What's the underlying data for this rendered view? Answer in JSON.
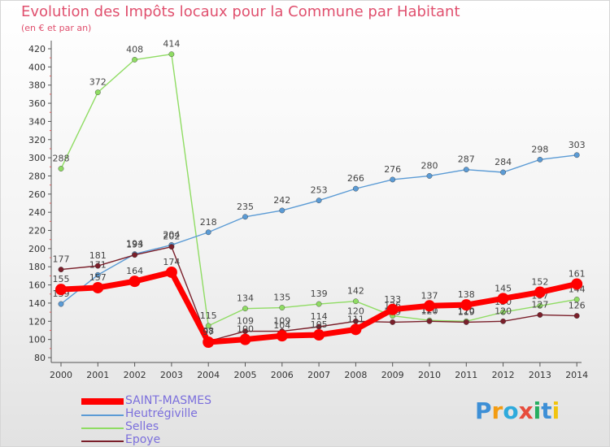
{
  "header": {
    "title": "Evolution des Impôts locaux pour la Commune par Habitant",
    "subtitle": "(en € et par an)"
  },
  "brand": {
    "text": "Proxiti",
    "colors": [
      "#3d8fd6",
      "#f39c12",
      "#2eaadc",
      "#e74c3c",
      "#27ae60",
      "#3d8fd6",
      "#f1c40f"
    ]
  },
  "chart_data": {
    "type": "line",
    "title": "Evolution des Impôts locaux pour la Commune par Habitant",
    "subtitle": "(en € et par an)",
    "x": [
      "2000",
      "2001",
      "2002",
      "2003",
      "2004",
      "2005",
      "2006",
      "2007",
      "2008",
      "2009",
      "2010",
      "2011",
      "2012",
      "2013",
      "2014"
    ],
    "ylim": [
      80,
      420
    ],
    "yticks": [
      80,
      100,
      120,
      140,
      160,
      180,
      200,
      220,
      240,
      260,
      280,
      300,
      320,
      340,
      360,
      380,
      400,
      420
    ],
    "grid": false,
    "legend_position": "bottom-left",
    "series": [
      {
        "name": "Selles",
        "color": "#8fdc63",
        "values": [
          288,
          372,
          408,
          414,
          115,
          134,
          135,
          139,
          142,
          126,
          121,
          120,
          130,
          137,
          144
        ],
        "labels": [
          "288",
          "372",
          "408",
          "414",
          "115",
          "134",
          "135",
          "139",
          "142",
          "126",
          "121",
          "120",
          "130",
          "137",
          "144"
        ]
      },
      {
        "name": "Heutrégiville",
        "color": "#5b9bd5",
        "values": [
          139,
          171,
          194,
          204,
          218,
          235,
          242,
          253,
          266,
          276,
          280,
          287,
          284,
          298,
          303
        ],
        "labels": [
          "139",
          "171",
          "194",
          "204",
          "218",
          "235",
          "242",
          "253",
          "266",
          "276",
          "280",
          "287",
          "284",
          "298",
          "303"
        ]
      },
      {
        "name": "Epoye",
        "color": "#7a1f2a",
        "values": [
          177,
          181,
          193,
          202,
          98,
          109,
          109,
          114,
          120,
          119,
          120,
          119,
          120,
          127,
          126
        ],
        "labels": [
          "177",
          "181",
          "193",
          "202",
          "98",
          "109",
          "109",
          "114",
          "120",
          "119",
          "120",
          "119",
          "120",
          "127",
          "126"
        ]
      },
      {
        "name": "SAINT-MASMES",
        "color": "#ff0000",
        "values": [
          155,
          157,
          164,
          174,
          97,
          100,
          104,
          105,
          111,
          133,
          137,
          138,
          145,
          152,
          161
        ],
        "labels": [
          "155",
          "157",
          "164",
          "174",
          "97",
          "100",
          "104",
          "105",
          "111",
          "133",
          "137",
          "138",
          "145",
          "152",
          "161"
        ]
      }
    ],
    "legend": [
      "SAINT-MASMES",
      "Heutrégiville",
      "Selles",
      "Epoye"
    ]
  }
}
